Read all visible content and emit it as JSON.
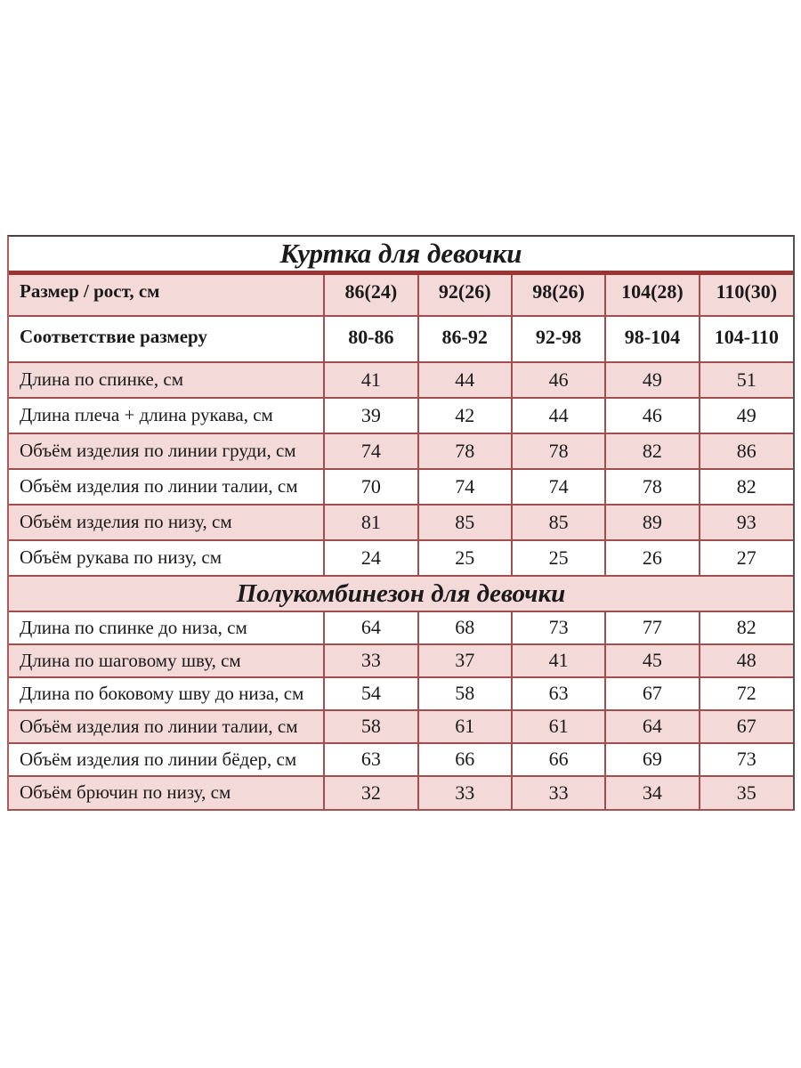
{
  "colors": {
    "page_background": "#ffffff",
    "row_pink": "#f3d9d8",
    "row_white": "#ffffff",
    "inner_border": "#a34e4e",
    "title_rule_maroon": "#9a3434",
    "outer_border_dark": "#4b4343",
    "text": "#1a1a1a"
  },
  "chart_data": [
    {
      "type": "table",
      "title": "Куртка для девочки",
      "columns": [
        "Размер / рост, см",
        "86(24)",
        "92(26)",
        "98(26)",
        "104(28)",
        "110(30)"
      ],
      "rows": [
        [
          "Соответствие размеру",
          "80-86",
          "86-92",
          "92-98",
          "98-104",
          "104-110"
        ],
        [
          "Длина по спинке, см",
          "41",
          "44",
          "46",
          "49",
          "51"
        ],
        [
          "Длина плеча + длина рукава, см",
          "39",
          "42",
          "44",
          "46",
          "49"
        ],
        [
          "Объём изделия по линии груди, см",
          "74",
          "78",
          "78",
          "82",
          "86"
        ],
        [
          "Объём изделия по линии талии, см",
          "70",
          "74",
          "74",
          "78",
          "82"
        ],
        [
          "Объём изделия по низу, см",
          "81",
          "85",
          "85",
          "89",
          "93"
        ],
        [
          "Объём рукава по низу, см",
          "24",
          "25",
          "25",
          "26",
          "27"
        ]
      ]
    },
    {
      "type": "table",
      "title": "Полукомбинезон для девочки",
      "columns": [
        "Размер / рост, см",
        "86(24)",
        "92(26)",
        "98(26)",
        "104(28)",
        "110(30)"
      ],
      "rows": [
        [
          "Длина по спинке до низа, см",
          "64",
          "68",
          "73",
          "77",
          "82"
        ],
        [
          "Длина по шаговому шву, см",
          "33",
          "37",
          "41",
          "45",
          "48"
        ],
        [
          "Длина по боковому шву до низа, см",
          "54",
          "58",
          "63",
          "67",
          "72"
        ],
        [
          "Объём изделия по линии талии, см",
          "58",
          "61",
          "61",
          "64",
          "67"
        ],
        [
          "Объём изделия по линии бёдер, см",
          "63",
          "66",
          "66",
          "69",
          "73"
        ],
        [
          "Объём брючин по низу, см",
          "32",
          "33",
          "33",
          "34",
          "35"
        ]
      ]
    }
  ]
}
